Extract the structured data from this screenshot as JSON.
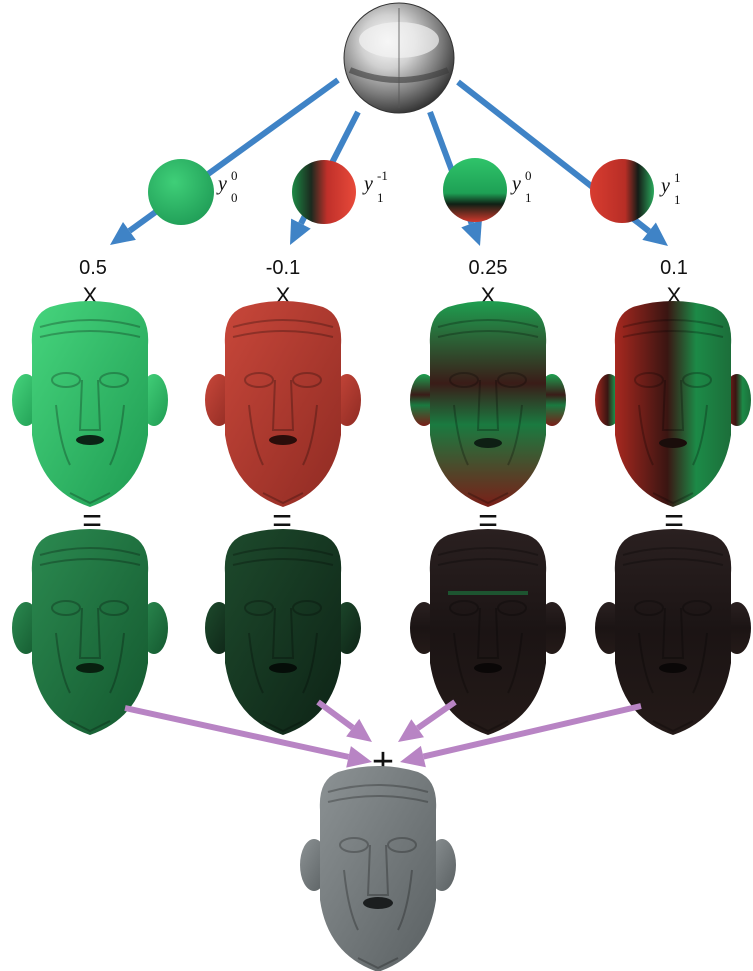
{
  "colors": {
    "arrow_blue": "#3f83c6",
    "arrow_purple": "#b884c4",
    "green": "#2fb365",
    "red": "#c13a2d",
    "gray": "#6f7576"
  },
  "probe": {
    "icon": "chrome-sphere-icon"
  },
  "columns": [
    {
      "id": "y00",
      "sphere": "sh-basis-y00-icon",
      "label": {
        "base": "y",
        "sub": "0",
        "sup": "0"
      },
      "coefficient": "0.5",
      "multiply": "X",
      "equals": "="
    },
    {
      "id": "y1m1",
      "sphere": "sh-basis-y1m1-icon",
      "label": {
        "base": "y",
        "sub": "1",
        "sup": "-1"
      },
      "coefficient": "-0.1",
      "multiply": "X",
      "equals": "="
    },
    {
      "id": "y10",
      "sphere": "sh-basis-y10-icon",
      "label": {
        "base": "y",
        "sub": "1",
        "sup": "0"
      },
      "coefficient": "0.25",
      "multiply": "X",
      "equals": "="
    },
    {
      "id": "y11",
      "sphere": "sh-basis-y11-icon",
      "label": {
        "base": "y",
        "sub": "1",
        "sup": "1"
      },
      "coefficient": "0.1",
      "multiply": "X",
      "equals": "="
    }
  ],
  "sum_operator": "+",
  "result": {
    "icon": "relit-face-icon"
  }
}
